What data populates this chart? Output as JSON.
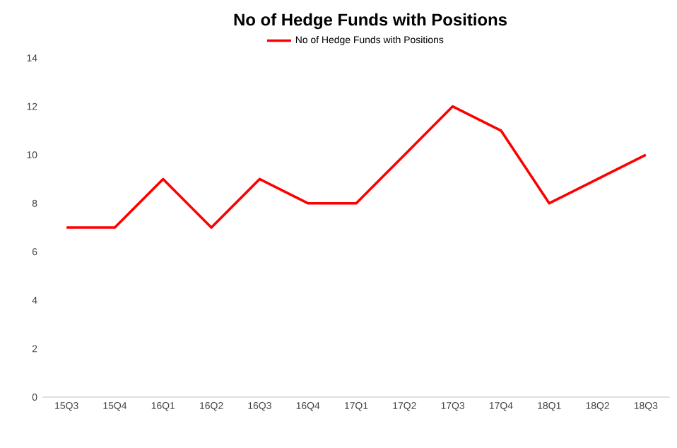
{
  "chart_data": {
    "type": "line",
    "title": "No of Hedge Funds with Positions",
    "categories": [
      "15Q3",
      "15Q4",
      "16Q1",
      "16Q2",
      "16Q3",
      "16Q4",
      "17Q1",
      "17Q2",
      "17Q3",
      "17Q4",
      "18Q1",
      "18Q2",
      "18Q3"
    ],
    "series": [
      {
        "name": "No of Hedge Funds with Positions",
        "color": "#ff0000",
        "values": [
          7,
          7,
          9,
          7,
          9,
          8,
          8,
          10,
          12,
          11,
          8,
          9,
          10
        ]
      }
    ],
    "ylim": [
      0,
      14
    ],
    "yticks": [
      0,
      2,
      4,
      6,
      8,
      10,
      12,
      14
    ],
    "legend": "top"
  }
}
